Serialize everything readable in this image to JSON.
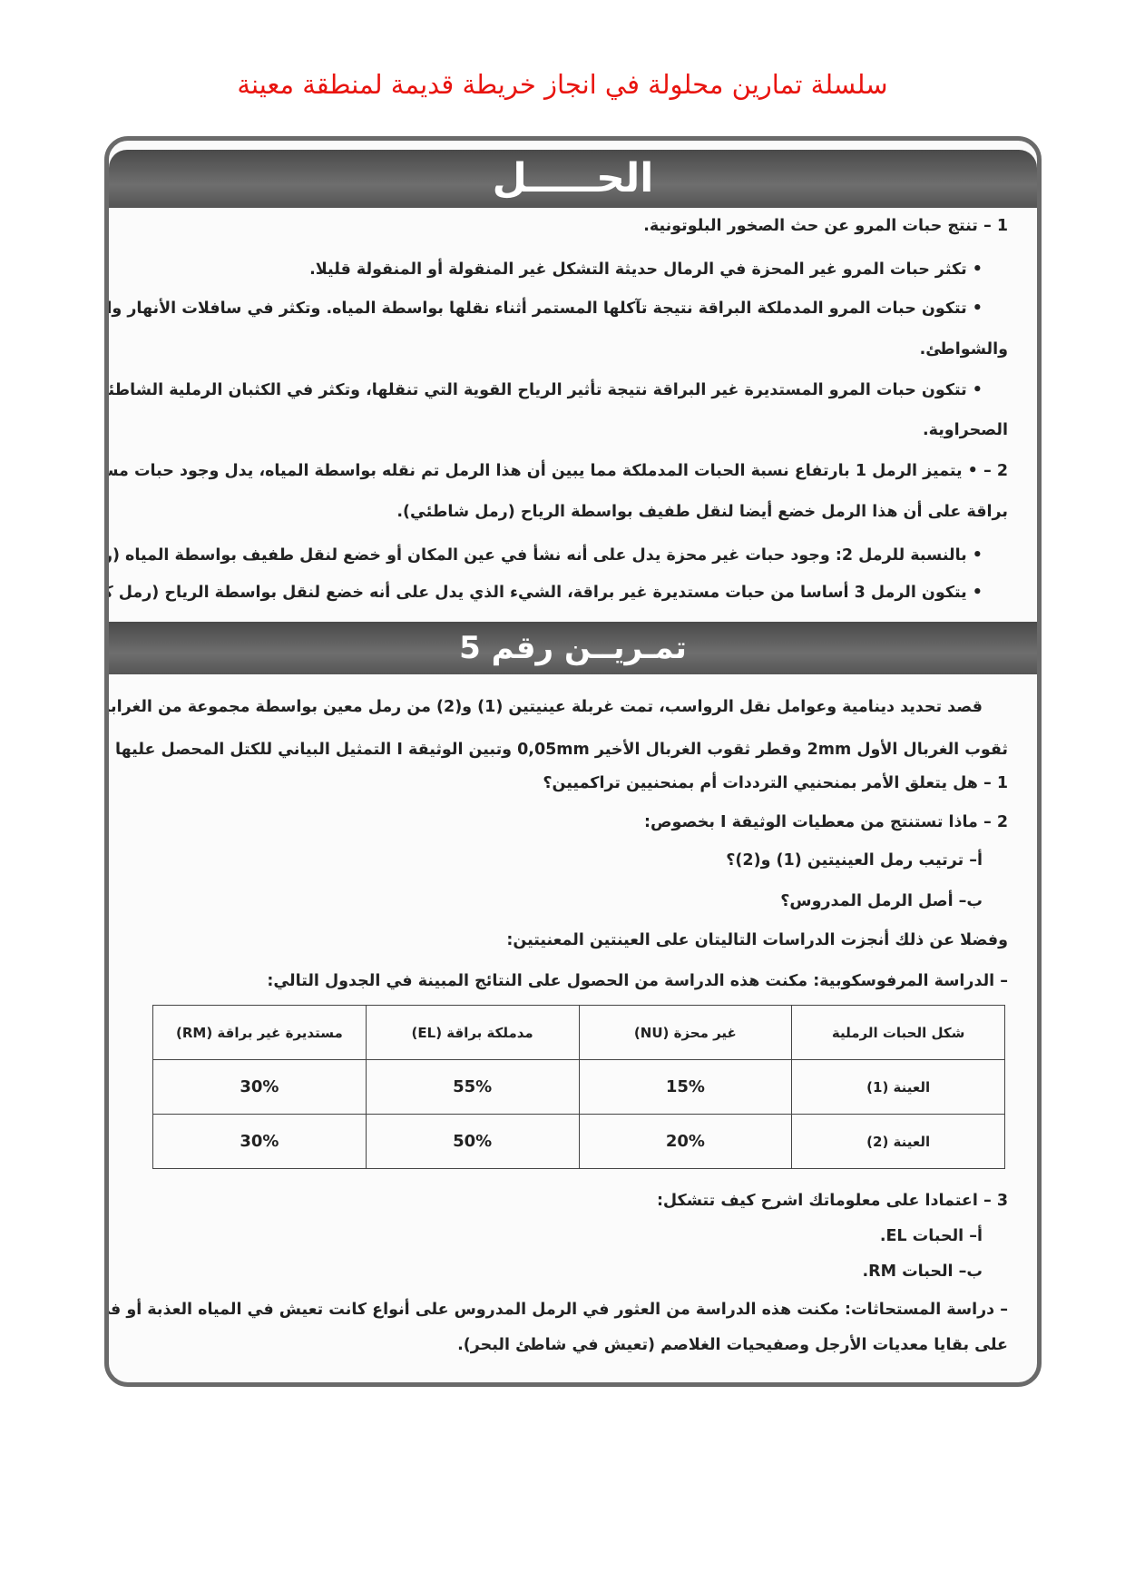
{
  "page_title": "سلسلة تمارين محلولة في انجاز خريطة قديمة لمنطقة معينة",
  "solution": {
    "heading": "الحـــــل",
    "lines": [
      "1 – تنتج حبات المرو عن حث الصخور البلوتونية.",
      "• تكثر حبات المرو غير المحزة في الرمال حديثة التشكل غير المنقولة أو المنقولة قليلا.",
      "• تتكون حبات المرو المدملكة البراقة نتيجة تآكلها المستمر أثناء نقلها بواسطة المياه. وتكثر في سافلات الأنهار والوديان",
      "والشواطئ.",
      "• تتكون حبات المرو المستديرة غير البراقة نتيجة تأثير الرياح القوية التي تنقلها، وتكثر في الكثبان الرملية الشاطئية أو",
      "الصحراوية.",
      "2 – • يتميز الرمل 1 بارتفاع نسبة الحبات المدملكة مما يبين أن هذا الرمل تم نقله بواسطة المياه، يدل وجود حبات مستديرة غير",
      "براقة على أن هذا الرمل خضع أيضا لنقل طفيف بواسطة الرياح (رمل شاطئي).",
      "• بالنسبة للرمل 2: وجود حبات غير محزة يدل على أنه نشأ في عين المكان أو خضع لنقل طفيف بواسطة المياه (رمل حديث).",
      "• يتكون الرمل 3 أساسا من حبات مستديرة غير براقة، الشيء الذي يدل على أنه خضع لنقل بواسطة الرياح (رمل كثباني)."
    ]
  },
  "exercise": {
    "heading": "تمـريــن رقم 5",
    "lines": [
      "قصد تحديد دينامية وعوامل نقل الرواسب، تمت غربلة عينيتين (1) و(2) من رمل معين بواسطة مجموعة من الغرابيل، يبلغ قطر",
      "ثقوب الغربال الأول 2mm وقطر ثقوب الغربال الأخير 0,05mm وتبين الوثيقة I التمثيل البياني للكتل المحصل عليها في كل غربال.",
      "1 – هل يتعلق الأمر بمنحنيي الترددات أم بمنحنيين تراكميين؟",
      "2 – ماذا تستنتج من معطيات الوثيقة I بخصوص:",
      "أ– ترتيب رمل العينيتين (1) و(2)؟",
      "ب– أصل الرمل المدروس؟",
      "وفضلا عن ذلك أنجزت الدراسات التاليتان على العينتين المعنيتين:",
      "– الدراسة المرفوسكوبية: مكنت هذه الدراسة من الحصول على النتائج المبينة في الجدول التالي:"
    ],
    "table": {
      "headers": [
        "شكل الحبات الرملية",
        "غير محزة (NU)",
        "مدملكة براقة (EL)",
        "مستديرة غير براقة (RM)"
      ],
      "rows": [
        [
          "العينة (1)",
          "15%",
          "55%",
          "30%"
        ],
        [
          "العينة (2)",
          "20%",
          "50%",
          "30%"
        ]
      ]
    },
    "after_lines": [
      "3 – اعتمادا على معلوماتك اشرح كيف تتشكل:",
      "أ– الحبات EL.",
      "ب– الحبات RM.",
      "– دراسة المستحاثات: مكنت هذه الدراسة من العثور في الرمل المدروس على أنواع كانت تعيش في المياه العذبة أو في اليابسة، كما عثر",
      "على بقايا معديات الأرجل وصفيحيات الغلاصم (تعيش في شاطئ البحر)."
    ]
  }
}
